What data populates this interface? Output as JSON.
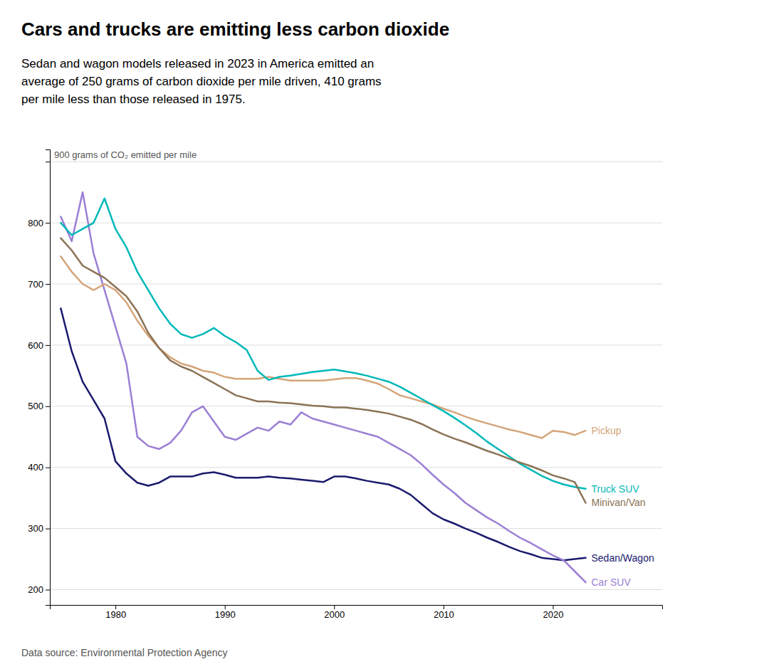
{
  "chart_data": {
    "type": "line",
    "title": "Cars and trucks are emitting less carbon dioxide",
    "subtitle": "Sedan and wagon models released in 2023 in America emitted an\naverage of 250 grams of carbon dioxide per mile driven, 410 grams\nper mile less than those released in 1975.",
    "source": "Data source: Environmental Protection Agency",
    "x": [
      1975,
      1976,
      1977,
      1978,
      1979,
      1980,
      1981,
      1982,
      1983,
      1984,
      1985,
      1986,
      1987,
      1988,
      1989,
      1990,
      1991,
      1992,
      1993,
      1994,
      1995,
      1996,
      1997,
      1998,
      1999,
      2000,
      2001,
      2002,
      2003,
      2004,
      2005,
      2006,
      2007,
      2008,
      2009,
      2010,
      2011,
      2012,
      2013,
      2014,
      2015,
      2016,
      2017,
      2018,
      2019,
      2020,
      2021,
      2022,
      2023
    ],
    "xlim": [
      1974,
      2030
    ],
    "xticks": [
      1980,
      1990,
      2000,
      2010,
      2020
    ],
    "ylim": [
      175,
      920
    ],
    "yticks": [
      200,
      300,
      400,
      500,
      600,
      700,
      800,
      {
        "value": 900,
        "label": "900 grams of CO₂ emitted per mile"
      }
    ],
    "grid": true,
    "series": [
      {
        "name": "Sedan/Wagon",
        "color": "#1a1a6e",
        "values": [
          660,
          590,
          540,
          510,
          480,
          410,
          390,
          375,
          370,
          375,
          385,
          385,
          385,
          390,
          392,
          388,
          383,
          383,
          383,
          385,
          383,
          382,
          380,
          378,
          376,
          385,
          385,
          382,
          378,
          375,
          372,
          365,
          355,
          340,
          325,
          315,
          308,
          300,
          293,
          285,
          278,
          270,
          263,
          258,
          252,
          250,
          248,
          250,
          252
        ]
      },
      {
        "name": "Car SUV",
        "color": "#9b7fd4",
        "values": [
          810,
          770,
          850,
          750,
          690,
          630,
          570,
          450,
          435,
          430,
          440,
          460,
          490,
          500,
          475,
          450,
          445,
          455,
          465,
          460,
          475,
          470,
          490,
          480,
          475,
          470,
          465,
          460,
          455,
          450,
          440,
          430,
          420,
          405,
          388,
          372,
          358,
          342,
          330,
          318,
          308,
          296,
          285,
          276,
          266,
          256,
          248,
          230,
          212
        ]
      },
      {
        "name": "Pickup",
        "color": "#d4a57a",
        "values": [
          745,
          720,
          700,
          690,
          700,
          690,
          670,
          640,
          615,
          595,
          580,
          570,
          565,
          558,
          555,
          548,
          545,
          545,
          545,
          548,
          545,
          542,
          542,
          542,
          542,
          544,
          546,
          546,
          542,
          537,
          528,
          518,
          513,
          508,
          503,
          496,
          490,
          483,
          477,
          472,
          467,
          462,
          458,
          453,
          448,
          460,
          458,
          453,
          460
        ]
      },
      {
        "name": "Truck SUV",
        "color": "#00b8b8",
        "values": [
          800,
          780,
          790,
          800,
          840,
          790,
          760,
          720,
          690,
          660,
          635,
          618,
          612,
          618,
          628,
          615,
          605,
          592,
          558,
          543,
          548,
          550,
          553,
          556,
          558,
          560,
          557,
          554,
          550,
          545,
          540,
          532,
          522,
          512,
          502,
          492,
          481,
          469,
          456,
          442,
          430,
          418,
          406,
          396,
          386,
          378,
          372,
          368,
          365
        ]
      },
      {
        "name": "Minivan/Van",
        "color": "#8b7355",
        "values": [
          775,
          755,
          730,
          720,
          710,
          695,
          680,
          655,
          620,
          595,
          575,
          565,
          558,
          548,
          538,
          528,
          518,
          513,
          508,
          508,
          506,
          505,
          503,
          501,
          500,
          498,
          498,
          496,
          494,
          491,
          488,
          483,
          478,
          471,
          462,
          454,
          447,
          441,
          434,
          427,
          421,
          414,
          408,
          402,
          395,
          387,
          382,
          376,
          342
        ]
      }
    ]
  }
}
